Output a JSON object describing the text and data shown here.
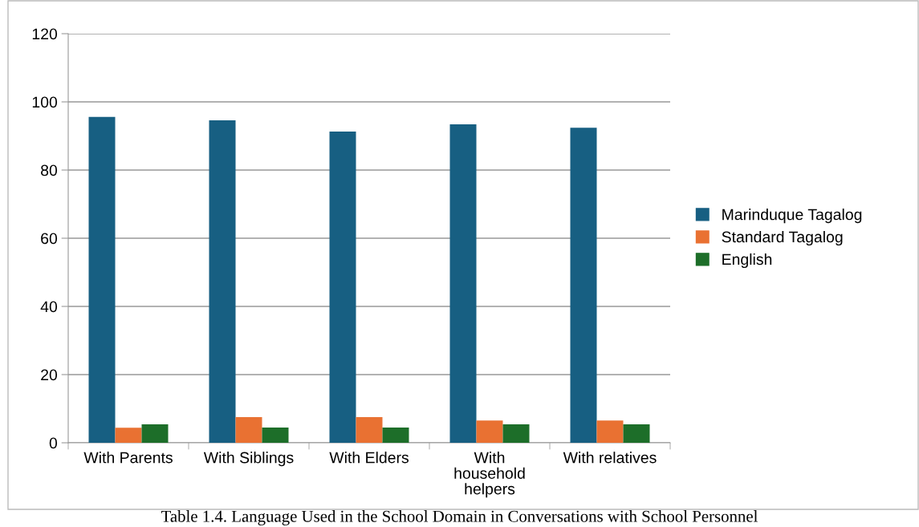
{
  "chart_data": {
    "type": "bar",
    "categories": [
      "With Parents",
      "With Siblings",
      "With Elders",
      "With household helpers",
      "With relatives"
    ],
    "series": [
      {
        "name": "Marinduque Tagalog",
        "color": "#175f82",
        "values": [
          95.6,
          94.6,
          91.3,
          93.4,
          92.4
        ]
      },
      {
        "name": "Standard Tagalog",
        "color": "#e97132",
        "values": [
          4.4,
          7.5,
          7.5,
          6.5,
          6.5
        ]
      },
      {
        "name": "English",
        "color": "#1d6e29",
        "values": [
          5.4,
          4.5,
          4.5,
          5.4,
          5.4
        ]
      }
    ],
    "ylim": [
      0,
      120
    ],
    "yticks": [
      0,
      20,
      40,
      60,
      80,
      100,
      120
    ],
    "grid": "y",
    "legend": "right",
    "annotations": [
      "Table 1.4. Language Used in the School Domain in Conversations with School Personnel"
    ]
  }
}
